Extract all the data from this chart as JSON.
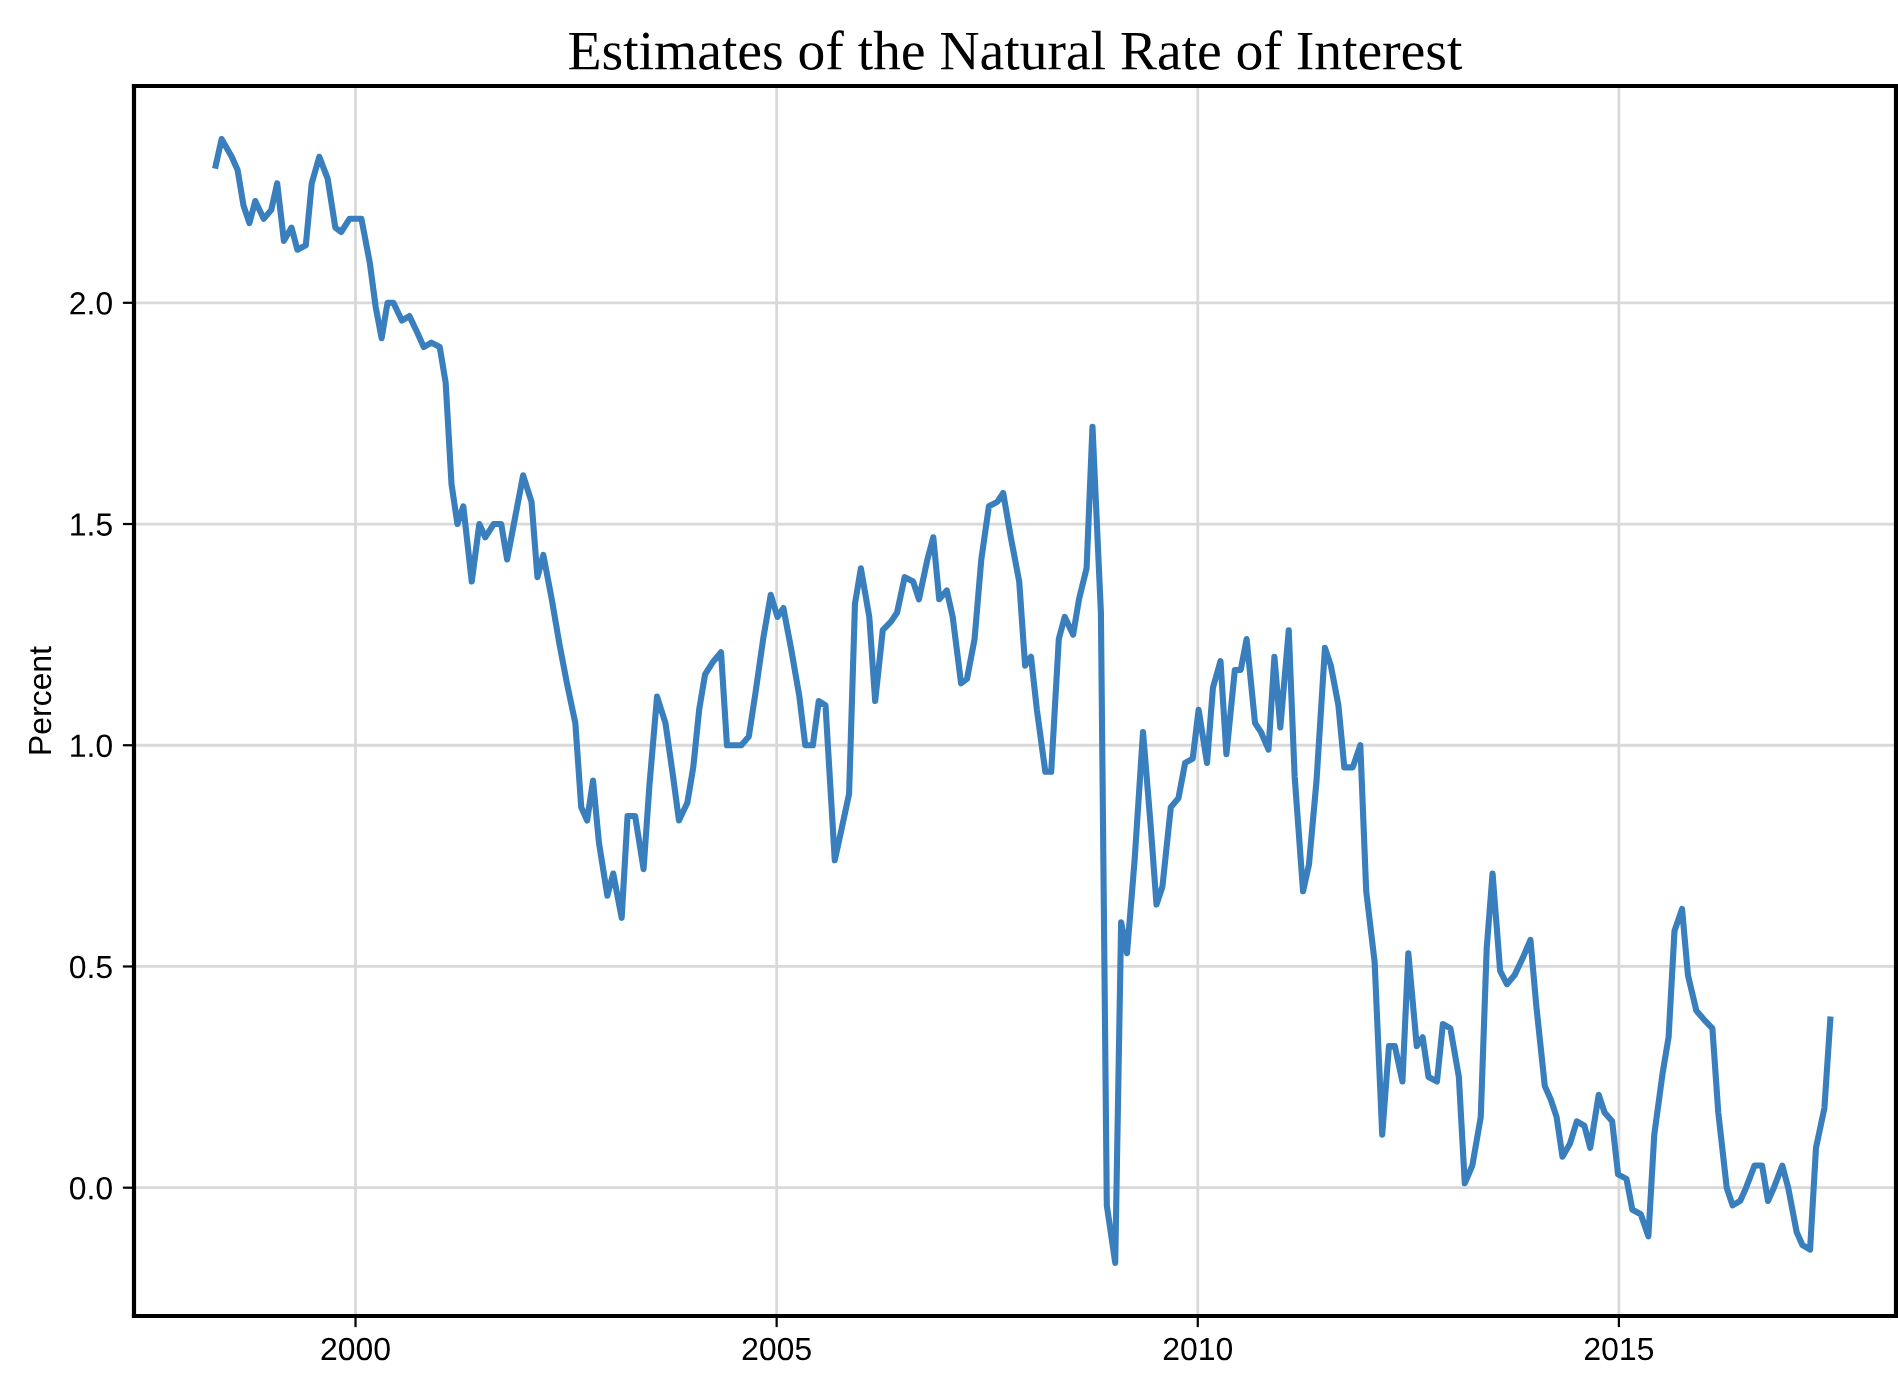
{
  "chart_data": {
    "type": "line",
    "title": "Estimates of the Natural Rate of Interest",
    "ylabel": "Percent",
    "xlim": [
      1997.37,
      2018.29
    ],
    "ylim": [
      -0.29,
      2.49
    ],
    "xticks": [
      2000,
      2005,
      2010,
      2015
    ],
    "yticks": [
      {
        "value": 0,
        "label": "0.0"
      },
      {
        "value": 0.5,
        "label": "0.5"
      },
      {
        "value": 1,
        "label": "1.0"
      },
      {
        "value": 1.5,
        "label": "1.5"
      },
      {
        "value": 2,
        "label": "2.0"
      }
    ],
    "grid": true,
    "line_style": "solid",
    "marker": "none",
    "series": [
      {
        "color": "#3a7fbd",
        "x": [
          1998.34,
          1998.41,
          1998.53,
          1998.6,
          1998.67,
          1998.74,
          1998.81,
          1998.91,
          1999.0,
          1999.07,
          1999.15,
          1999.24,
          1999.31,
          1999.41,
          1999.48,
          1999.57,
          1999.67,
          1999.76,
          1999.83,
          1999.93,
          2000.0,
          2000.07,
          2000.17,
          2000.24,
          2000.31,
          2000.38,
          2000.45,
          2000.55,
          2000.64,
          2000.74,
          2000.81,
          2000.9,
          2001.0,
          2001.07,
          2001.14,
          2001.21,
          2001.28,
          2001.38,
          2001.47,
          2001.54,
          2001.64,
          2001.73,
          2001.8,
          2001.9,
          2001.99,
          2002.09,
          2002.16,
          2002.23,
          2002.33,
          2002.42,
          2002.51,
          2002.61,
          2002.68,
          2002.75,
          2002.82,
          2002.89,
          2002.99,
          2003.06,
          2003.16,
          2003.23,
          2003.32,
          2003.42,
          2003.49,
          2003.58,
          2003.68,
          2003.77,
          2003.84,
          2003.94,
          2004.01,
          2004.08,
          2004.15,
          2004.25,
          2004.34,
          2004.41,
          2004.51,
          2004.58,
          2004.67,
          2004.75,
          2004.84,
          2004.93,
          2005.01,
          2005.08,
          2005.17,
          2005.27,
          2005.34,
          2005.43,
          2005.5,
          2005.58,
          2005.69,
          2005.77,
          2005.86,
          2005.93,
          2006.0,
          2006.1,
          2006.17,
          2006.26,
          2006.36,
          2006.43,
          2006.52,
          2006.62,
          2006.69,
          2006.79,
          2006.86,
          2006.93,
          2007.02,
          2007.09,
          2007.19,
          2007.26,
          2007.35,
          2007.43,
          2007.52,
          2007.62,
          2007.69,
          2007.78,
          2007.88,
          2007.95,
          2008.02,
          2008.09,
          2008.19,
          2008.26,
          2008.35,
          2008.42,
          2008.52,
          2008.59,
          2008.68,
          2008.75,
          2008.85,
          2008.92,
          2009.02,
          2009.09,
          2009.16,
          2009.25,
          2009.35,
          2009.44,
          2009.51,
          2009.58,
          2009.68,
          2009.77,
          2009.85,
          2009.94,
          2010.01,
          2010.11,
          2010.18,
          2010.27,
          2010.34,
          2010.44,
          2010.51,
          2010.58,
          2010.68,
          2010.75,
          2010.84,
          2010.91,
          2010.98,
          2011.08,
          2011.15,
          2011.25,
          2011.32,
          2011.41,
          2011.51,
          2011.58,
          2011.67,
          2011.74,
          2011.84,
          2011.93,
          2012.0,
          2012.1,
          2012.19,
          2012.27,
          2012.34,
          2012.43,
          2012.5,
          2012.6,
          2012.67,
          2012.74,
          2012.84,
          2012.91,
          2013.0,
          2013.1,
          2013.17,
          2013.26,
          2013.36,
          2013.43,
          2013.5,
          2013.59,
          2013.67,
          2013.76,
          2013.86,
          2013.95,
          2014.02,
          2014.12,
          2014.19,
          2014.26,
          2014.33,
          2014.42,
          2014.5,
          2014.59,
          2014.66,
          2014.76,
          2014.83,
          2014.92,
          2014.99,
          2015.09,
          2015.16,
          2015.26,
          2015.35,
          2015.42,
          2015.52,
          2015.59,
          2015.66,
          2015.75,
          2015.82,
          2015.92,
          2016.01,
          2016.11,
          2016.18,
          2016.28,
          2016.35,
          2016.44,
          2016.51,
          2016.61,
          2016.7,
          2016.77,
          2016.84,
          2016.94,
          2017.01,
          2017.11,
          2017.18,
          2017.27,
          2017.34,
          2017.44,
          2017.51
        ],
        "values": [
          2.31,
          2.37,
          2.33,
          2.3,
          2.22,
          2.18,
          2.23,
          2.19,
          2.21,
          2.27,
          2.14,
          2.17,
          2.12,
          2.13,
          2.27,
          2.33,
          2.28,
          2.17,
          2.16,
          2.19,
          2.19,
          2.19,
          2.09,
          1.99,
          1.92,
          2.0,
          2.0,
          1.96,
          1.97,
          1.93,
          1.9,
          1.91,
          1.9,
          1.82,
          1.59,
          1.5,
          1.54,
          1.37,
          1.5,
          1.47,
          1.5,
          1.5,
          1.42,
          1.52,
          1.61,
          1.55,
          1.38,
          1.43,
          1.33,
          1.23,
          1.14,
          1.05,
          0.86,
          0.83,
          0.92,
          0.78,
          0.66,
          0.71,
          0.61,
          0.84,
          0.84,
          0.72,
          0.91,
          1.11,
          1.05,
          0.93,
          0.83,
          0.87,
          0.95,
          1.08,
          1.16,
          1.19,
          1.21,
          1.0,
          1.0,
          1.0,
          1.02,
          1.12,
          1.24,
          1.34,
          1.29,
          1.31,
          1.22,
          1.11,
          1.0,
          1.0,
          1.1,
          1.09,
          0.74,
          0.81,
          0.89,
          1.32,
          1.4,
          1.29,
          1.1,
          1.26,
          1.28,
          1.3,
          1.38,
          1.37,
          1.33,
          1.42,
          1.47,
          1.33,
          1.35,
          1.29,
          1.14,
          1.15,
          1.24,
          1.42,
          1.54,
          1.55,
          1.57,
          1.47,
          1.37,
          1.18,
          1.2,
          1.08,
          0.94,
          0.94,
          1.24,
          1.29,
          1.25,
          1.33,
          1.4,
          1.72,
          1.3,
          -0.04,
          -0.17,
          0.6,
          0.53,
          0.74,
          1.03,
          0.82,
          0.64,
          0.68,
          0.86,
          0.88,
          0.96,
          0.97,
          1.08,
          0.96,
          1.13,
          1.19,
          0.98,
          1.17,
          1.17,
          1.24,
          1.05,
          1.03,
          0.99,
          1.2,
          1.04,
          1.26,
          0.93,
          0.67,
          0.73,
          0.92,
          1.22,
          1.18,
          1.09,
          0.95,
          0.95,
          1.0,
          0.67,
          0.51,
          0.12,
          0.32,
          0.32,
          0.24,
          0.53,
          0.32,
          0.34,
          0.25,
          0.24,
          0.37,
          0.36,
          0.25,
          0.01,
          0.05,
          0.16,
          0.54,
          0.71,
          0.49,
          0.46,
          0.48,
          0.52,
          0.56,
          0.41,
          0.23,
          0.2,
          0.16,
          0.07,
          0.1,
          0.15,
          0.14,
          0.09,
          0.21,
          0.17,
          0.15,
          0.03,
          0.02,
          -0.05,
          -0.06,
          -0.11,
          0.12,
          0.26,
          0.34,
          0.58,
          0.63,
          0.48,
          0.4,
          0.38,
          0.36,
          0.17,
          0.0,
          -0.04,
          -0.03,
          0.0,
          0.05,
          0.05,
          -0.03,
          0.0,
          0.05,
          0.0,
          -0.1,
          -0.13,
          -0.14,
          0.09,
          0.18,
          0.38
        ]
      }
    ]
  }
}
